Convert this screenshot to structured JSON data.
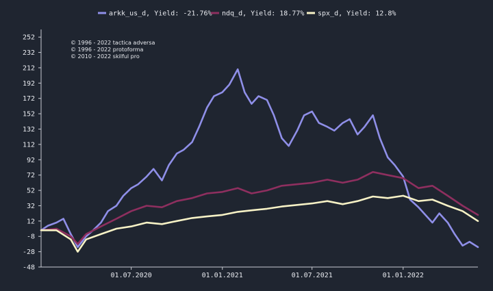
{
  "colors": {
    "background": "#1f2530",
    "axis": "#c9ccd3",
    "text": "#e8eaef"
  },
  "legend": {
    "placement": "top-center",
    "items": [
      {
        "label": "arkk_us_d, Yield: -21.76%",
        "color": "#8f8fe8"
      },
      {
        "label": "ndq_d, Yield: 18.77%",
        "color": "#8e2f5f"
      },
      {
        "label": "spx_d, Yield: 12.8%",
        "color": "#f7f2c6"
      }
    ]
  },
  "copyright_lines": [
    "© 1996 - 2022 tactica adversa",
    "© 1996 - 2022 protoforma",
    "© 2010 - 2022 skilful pro"
  ],
  "chart_data": {
    "type": "line",
    "title": "",
    "xlabel": "",
    "ylabel": "",
    "grid": false,
    "x_ticks": [
      "01.07.2020",
      "01.01.2021",
      "01.07.2021",
      "01.01.2022"
    ],
    "y_ticks": [
      252,
      232,
      212,
      192,
      172,
      152,
      132,
      112,
      92,
      72,
      52,
      32,
      12,
      -8,
      -28,
      -48
    ],
    "ylim": [
      -48,
      262
    ],
    "x_start": "2020-01-01",
    "x_end": "2022-06-01",
    "series": [
      {
        "name": "arkk_us_d, Yield: -21.76%",
        "color": "#8f8fe8",
        "x": [
          "2020-01-01",
          "2020-01-15",
          "2020-02-01",
          "2020-02-15",
          "2020-03-01",
          "2020-03-15",
          "2020-04-01",
          "2020-04-15",
          "2020-05-01",
          "2020-05-15",
          "2020-06-01",
          "2020-06-15",
          "2020-07-01",
          "2020-07-15",
          "2020-08-01",
          "2020-08-15",
          "2020-09-01",
          "2020-09-15",
          "2020-10-01",
          "2020-10-15",
          "2020-11-01",
          "2020-11-15",
          "2020-12-01",
          "2020-12-15",
          "2021-01-01",
          "2021-01-15",
          "2021-02-01",
          "2021-02-15",
          "2021-03-01",
          "2021-03-15",
          "2021-04-01",
          "2021-04-15",
          "2021-05-01",
          "2021-05-15",
          "2021-06-01",
          "2021-06-15",
          "2021-07-01",
          "2021-07-15",
          "2021-08-01",
          "2021-08-15",
          "2021-09-01",
          "2021-09-15",
          "2021-10-01",
          "2021-10-15",
          "2021-11-01",
          "2021-11-15",
          "2021-12-01",
          "2021-12-15",
          "2022-01-01",
          "2022-01-15",
          "2022-02-01",
          "2022-02-15",
          "2022-03-01",
          "2022-03-15",
          "2022-04-01",
          "2022-04-15",
          "2022-05-01",
          "2022-05-15",
          "2022-06-01"
        ],
        "values": [
          0,
          6,
          10,
          15,
          -5,
          -22,
          -8,
          0,
          10,
          25,
          32,
          45,
          55,
          60,
          70,
          80,
          65,
          85,
          100,
          105,
          115,
          135,
          160,
          175,
          180,
          190,
          210,
          180,
          165,
          175,
          170,
          150,
          120,
          110,
          130,
          150,
          155,
          140,
          135,
          130,
          140,
          145,
          125,
          135,
          150,
          120,
          95,
          85,
          70,
          40,
          30,
          20,
          10,
          22,
          10,
          -5,
          -20,
          -15,
          -22
        ]
      },
      {
        "name": "ndq_d, Yield: 18.77%",
        "color": "#8e2f5f",
        "x": [
          "2020-01-01",
          "2020-02-01",
          "2020-03-01",
          "2020-03-15",
          "2020-04-01",
          "2020-05-01",
          "2020-06-01",
          "2020-07-01",
          "2020-08-01",
          "2020-09-01",
          "2020-10-01",
          "2020-11-01",
          "2020-12-01",
          "2021-01-01",
          "2021-02-01",
          "2021-03-01",
          "2021-04-01",
          "2021-05-01",
          "2021-06-01",
          "2021-07-01",
          "2021-08-01",
          "2021-09-01",
          "2021-10-01",
          "2021-11-01",
          "2021-12-01",
          "2022-01-01",
          "2022-02-01",
          "2022-03-01",
          "2022-04-01",
          "2022-05-01",
          "2022-06-01"
        ],
        "values": [
          0,
          2,
          -8,
          -18,
          -5,
          5,
          15,
          25,
          32,
          30,
          38,
          42,
          48,
          50,
          55,
          48,
          52,
          58,
          60,
          62,
          66,
          62,
          66,
          76,
          72,
          68,
          55,
          58,
          45,
          32,
          20
        ]
      },
      {
        "name": "spx_d, Yield: 12.8%",
        "color": "#f7f2c6",
        "x": [
          "2020-01-01",
          "2020-02-01",
          "2020-03-01",
          "2020-03-15",
          "2020-04-01",
          "2020-05-01",
          "2020-06-01",
          "2020-07-01",
          "2020-08-01",
          "2020-09-01",
          "2020-10-01",
          "2020-11-01",
          "2020-12-01",
          "2021-01-01",
          "2021-02-01",
          "2021-03-01",
          "2021-04-01",
          "2021-05-01",
          "2021-06-01",
          "2021-07-01",
          "2021-08-01",
          "2021-09-01",
          "2021-10-01",
          "2021-11-01",
          "2021-12-01",
          "2022-01-01",
          "2022-02-01",
          "2022-03-01",
          "2022-04-01",
          "2022-05-01",
          "2022-06-01"
        ],
        "values": [
          0,
          0,
          -12,
          -28,
          -12,
          -5,
          2,
          5,
          10,
          8,
          12,
          16,
          18,
          20,
          24,
          26,
          28,
          31,
          33,
          35,
          38,
          34,
          38,
          44,
          42,
          45,
          38,
          40,
          32,
          25,
          12
        ]
      }
    ]
  }
}
